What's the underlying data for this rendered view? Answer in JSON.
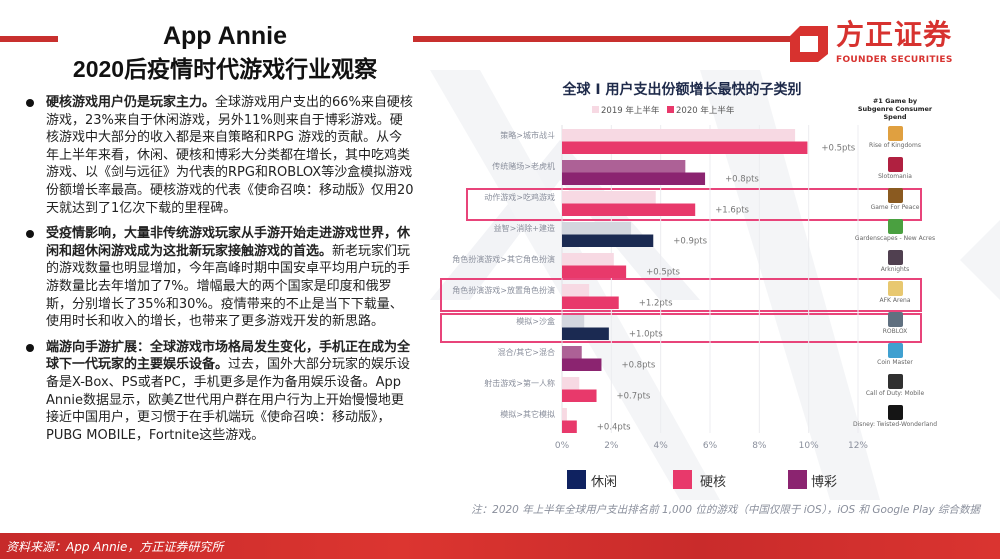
{
  "header": {
    "title_line1": "App Annie",
    "title_line2": "2020后疫情时代游戏行业观察"
  },
  "logo": {
    "cn": "方正证券",
    "en": "FOUNDER SECURITIES",
    "color": "#d7322f"
  },
  "bullets": [
    {
      "bold": "硬核游戏用户仍是玩家主力。",
      "text": "全球游戏用户支出的66%来自硬核游戏，23%来自于休闲游戏，另外11%则来自于博彩游戏。硬核游戏中大部分的收入都是来自策略和RPG 游戏的贡献。从今年上半年来看，休闲、硬核和博彩大分类都在增长，其中吃鸡类游戏、以《剑与远征》为代表的RPG和ROBLOX等沙盒模拟游戏份额增长率最高。硬核游戏的代表《使命召唤：移动版》仅用20天就达到了1亿次下载的里程碑。"
    },
    {
      "bold": "受疫情影响，大量非传统游戏玩家从手游开始走进游戏世界，休闲和超休闲游戏成为这批新玩家接触游戏的首选。",
      "text": "新老玩家们玩的游戏数量也明显增加，今年高峰时期中国安卓平均用户玩的手游数量比去年增加了7%。增幅最大的两个国家是印度和俄罗斯，分别增长了35%和30%。疫情带来的不止是当下下载量、使用时长和收入的增长，也带来了更多游戏开发的新思路。"
    },
    {
      "bold": "端游向手游扩展：全球游戏市场格局发生变化，手机正在成为全球下一代玩家的主要娱乐设备。",
      "text": "过去，国外大部分玩家的娱乐设备是X-Box、PS或者PC，手机更多是作为备用娱乐设备。App Annie数据显示，欧美Z世代用户群在用户行为上开始慢慢地更接近中国用户，更习惯于在手机端玩《使命召唤：移动版》，PUBG MOBILE，Fortnite这些游戏。"
    }
  ],
  "chart_data": {
    "type": "bar",
    "orientation": "horizontal",
    "title": "全球 I 用户支出份额增长最快的子类别",
    "categories": [
      "策略>城市战斗",
      "传统赌场>老虎机",
      "动作游戏>吃鸡游戏",
      "益智>消除+建造",
      "角色扮演游戏>其它角色扮演",
      "角色扮演游戏>放置角色扮演",
      "模拟>沙盒",
      "混合/其它>混合",
      "射击游戏>第一人称",
      "模拟>其它模拟"
    ],
    "series": [
      {
        "name": "2019 年上半年",
        "values": [
          9.45,
          5.0,
          3.8,
          2.8,
          2.1,
          1.1,
          0.9,
          0.8,
          0.7,
          0.2
        ]
      },
      {
        "name": "2020 年上半年",
        "values": [
          9.95,
          5.8,
          5.4,
          3.7,
          2.6,
          2.3,
          1.9,
          1.6,
          1.4,
          0.6
        ]
      }
    ],
    "growth_labels": [
      "+0.5pts",
      "+0.8pts",
      "+1.6pts",
      "+0.9pts",
      "+0.5pts",
      "+1.2pts",
      "+1.0pts",
      "+0.8pts",
      "+0.7pts",
      "+0.4pts"
    ],
    "genre_group": [
      "硬核",
      "博彩",
      "硬核",
      "休闲",
      "硬核",
      "硬核",
      "休闲",
      "博彩",
      "硬核",
      "硬核"
    ],
    "highlighted": [
      2,
      5,
      6
    ],
    "xlim": [
      0,
      12
    ],
    "x_ticks": [
      "0%",
      "2%",
      "4%",
      "6%",
      "8%",
      "10%",
      "12%"
    ],
    "grid": true,
    "legend_placement": "top",
    "group_legend": [
      {
        "name": "休闲",
        "color": "#0f2260"
      },
      {
        "name": "硬核",
        "color": "#e8396b"
      },
      {
        "name": "博彩",
        "color": "#8b2470"
      }
    ],
    "group_colors": {
      "硬核": {
        "2019": "#f7d9e3",
        "2020": "#e8396b"
      },
      "博彩": {
        "2019": "#ad6196",
        "2020": "#8b2470"
      },
      "休闲": {
        "2019": "#d3d6de",
        "2020": "#1b2a52"
      }
    },
    "top_game_header": "#1 Game by Subgenre Consumer Spend",
    "top_games": [
      "Rise of Kingdoms",
      "Slotomania",
      "Game For Peace",
      "Gardenscapes - New Acres",
      "Arknights",
      "AFK Arena",
      "ROBLOX",
      "Coin Master",
      "Call of Duty: Mobile",
      "Disney: Twisted-Wonderland"
    ]
  },
  "note": "注：2020 年上半年全球用户支出排名前 1,000 位的游戏（中国仅限于 iOS），iOS 和 Google Play 综合数据",
  "footer": {
    "source": "资料来源：App Annie，方正证券研究所"
  }
}
